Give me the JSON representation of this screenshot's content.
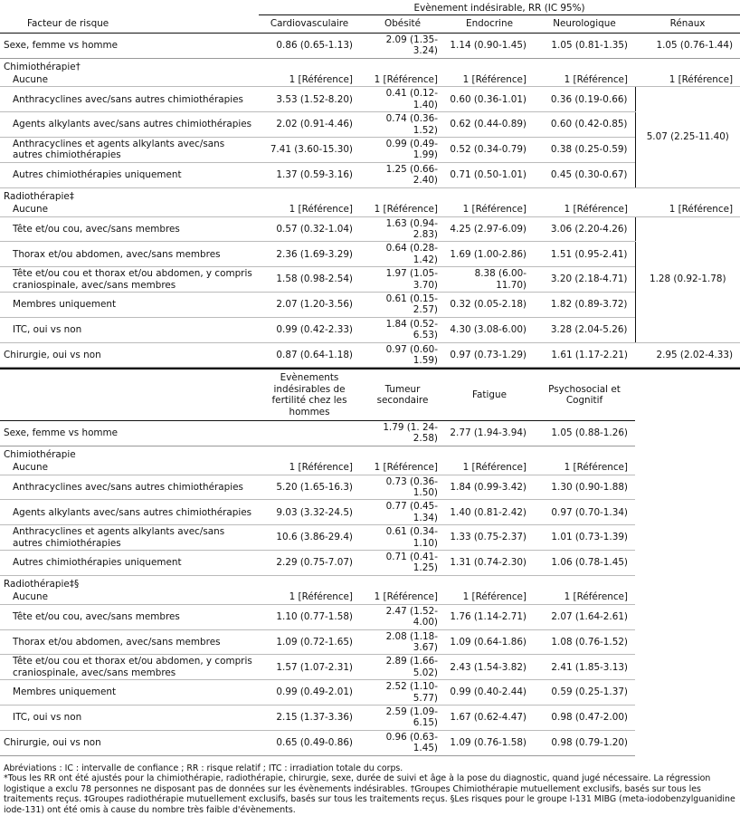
{
  "table1": {
    "group_header": "Evènement indésirable, RR (IC 95%)",
    "row_header": "Facteur de risque",
    "columns": [
      "Cardiovasculaire",
      "Obésité",
      "Endocrine",
      "Neurologique",
      "Rénaux"
    ],
    "sections": [
      {
        "label": "Sexe, femme vs homme",
        "values": [
          "0.86 (0.65-1.13)",
          "2.09 (1.35-3.24)",
          "1.14 (0.90-1.45)",
          "1.05 (0.81-1.35)",
          "1.05 (0.76-1.44)"
        ]
      },
      {
        "heading": "Chimiothérapie†",
        "reference": {
          "label": "Aucune",
          "values": [
            "1 [Référence]",
            "1 [Référence]",
            "1 [Référence]",
            "1 [Référence]",
            "1 [Référence]"
          ]
        },
        "items": [
          {
            "label": "Anthracyclines avec/sans autres chimiothérapies",
            "values": [
              "3.53 (1.52-8.20)",
              "0.41 (0.12-1.40)",
              "0.60 (0.36-1.01)",
              "0.36 (0.19-0.66)"
            ]
          },
          {
            "label": "Agents alkylants avec/sans autres chimiothérapies",
            "values": [
              "2.02 (0.91-4.46)",
              "0.74 (0.36-1.52)",
              "0.62 (0.44-0.89)",
              "0.60 (0.42-0.85)"
            ]
          },
          {
            "label": "Anthracyclines et agents alkylants avec/sans autres chimiothérapies",
            "values": [
              "7.41 (3.60-15.30)",
              "0.99 (0.49-1.99)",
              "0.52 (0.34-0.79)",
              "0.38 (0.25-0.59)"
            ]
          },
          {
            "label": "Autres chimiothérapies uniquement",
            "values": [
              "1.37 (0.59-3.16)",
              "1.25 (0.66-2.40)",
              "0.71 (0.50-1.01)",
              "0.45 (0.30-0.67)"
            ]
          }
        ],
        "shared": "5.07 (2.25-11.40)"
      },
      {
        "heading": "Radiothérapie‡",
        "reference": {
          "label": "Aucune",
          "values": [
            "1 [Référence]",
            "1 [Référence]",
            "1 [Référence]",
            "1 [Référence]",
            "1 [Référence]"
          ]
        },
        "items": [
          {
            "label": "Tête et/ou cou, avec/sans membres",
            "values": [
              "0.57 (0.32-1.04)",
              "1.63 (0.94-2.83)",
              "4.25 (2.97-6.09)",
              "3.06 (2.20-4.26)"
            ]
          },
          {
            "label": "Thorax et/ou abdomen, avec/sans membres",
            "values": [
              "2.36 (1.69-3.29)",
              "0.64 (0.28-1.42)",
              "1.69 (1.00-2.86)",
              "1.51 (0.95-2.41)"
            ]
          },
          {
            "label": "Tête et/ou cou et thorax et/ou abdomen, y compris craniospinale, avec/sans membres",
            "values": [
              "1.58 (0.98-2.54)",
              "1.97 (1.05-3.70)",
              "8.38 (6.00-11.70)",
              "3.20 (2.18-4.71)"
            ]
          },
          {
            "label": "Membres uniquement",
            "values": [
              "2.07 (1.20-3.56)",
              "0.61 (0.15-2.57)",
              "0.32 (0.05-2.18)",
              "1.82 (0.89-3.72)"
            ]
          },
          {
            "label": "ITC, oui vs non",
            "values": [
              "0.99 (0.42-2.33)",
              "1.84 (0.52-6.53)",
              "4.30 (3.08-6.00)",
              "3.28 (2.04-5.26)"
            ]
          }
        ],
        "shared": "1.28 (0.92-1.78)"
      },
      {
        "label": "Chirurgie, oui vs non",
        "values": [
          "0.87 (0.64-1.18)",
          "0.97 (0.60-1.59)",
          "0.97 (0.73-1.29)",
          "1.61 (1.17-2.21)",
          "2.95 (2.02-4.33)"
        ]
      }
    ]
  },
  "table2": {
    "columns": [
      "Evènements indésirables de fertilité chez les hommes",
      "Tumeur secondaire",
      "Fatigue",
      "Psychosocial et Cognitif"
    ],
    "sections": [
      {
        "label": "Sexe, femme vs homme",
        "values": [
          null,
          "1.79 (1. 24-2.58)",
          "2.77 (1.94-3.94)",
          "1.05 (0.88-1.26)"
        ]
      },
      {
        "heading": "Chimiothérapie",
        "reference": {
          "label": "Aucune",
          "values": [
            "1 [Référence]",
            "1 [Référence]",
            "1 [Référence]",
            "1 [Référence]"
          ]
        },
        "items": [
          {
            "label": "Anthracyclines avec/sans autres chimiothérapies",
            "values": [
              "5.20 (1.65-16.3)",
              "0.73 (0.36-1.50)",
              "1.84 (0.99-3.42)",
              "1.30 (0.90-1.88)"
            ]
          },
          {
            "label": "Agents alkylants avec/sans autres chimiothérapies",
            "values": [
              "9.03 (3.32-24.5)",
              "0.77 (0.45-1.34)",
              "1.40 (0.81-2.42)",
              "0.97 (0.70-1.34)"
            ]
          },
          {
            "label": "Anthracyclines et agents alkylants avec/sans autres chimiothérapies",
            "values": [
              "10.6 (3.86-29.4)",
              "0.61 (0.34-1.10)",
              "1.33 (0.75-2.37)",
              "1.01 (0.73-1.39)"
            ]
          },
          {
            "label": "Autres chimiothérapies uniquement",
            "values": [
              "2.29 (0.75-7.07)",
              "0.71 (0.41-1.25)",
              "1.31 (0.74-2.30)",
              "1.06 (0.78-1.45)"
            ]
          }
        ]
      },
      {
        "heading": "Radiothérapie‡§",
        "reference": {
          "label": "Aucune",
          "values": [
            "1 [Référence]",
            "1 [Référence]",
            "1 [Référence]",
            "1 [Référence]"
          ]
        },
        "items": [
          {
            "label": "Tête et/ou cou, avec/sans membres",
            "values": [
              "1.10 (0.77-1.58)",
              "2.47 (1.52-4.00)",
              "1.76 (1.14-2.71)",
              "2.07 (1.64-2.61)"
            ]
          },
          {
            "label": "Thorax et/ou abdomen, avec/sans membres",
            "values": [
              "1.09 (0.72-1.65)",
              "2.08 (1.18-3.67)",
              "1.09 (0.64-1.86)",
              "1.08 (0.76-1.52)"
            ]
          },
          {
            "label": "Tête et/ou cou et thorax et/ou abdomen, y compris craniospinale, avec/sans membres",
            "values": [
              "1.57 (1.07-2.31)",
              "2.89 (1.66-5.02)",
              "2.43 (1.54-3.82)",
              "2.41 (1.85-3.13)"
            ]
          },
          {
            "label": "Membres uniquement",
            "values": [
              "0.99 (0.49-2.01)",
              "2.52 (1.10-5.77)",
              "0.99 (0.40-2.44)",
              "0.59 (0.25-1.37)"
            ]
          },
          {
            "label": "ITC, oui vs non",
            "values": [
              "2.15 (1.37-3.36)",
              "2.59 (1.09-6.15)",
              "1.67 (0.62-4.47)",
              "0.98 (0.47-2.00)"
            ]
          }
        ]
      },
      {
        "label": "Chirurgie, oui vs non",
        "values": [
          "0.65 (0.49-0.86)",
          "0.96 (0.63-1.45)",
          "1.09 (0.76-1.58)",
          "0.98 (0.79-1.20)"
        ]
      }
    ]
  },
  "notes": [
    "Abréviations : IC : intervalle de confiance ; RR : risque relatif ; ITC : irradiation totale du corps.",
    "*Tous les RR ont été ajustés pour la chimiothérapie, radiothérapie, chirurgie, sexe, durée de suivi et âge à la pose du diagnostic, quand jugé nécessaire. La régression logistique a exclu 78 personnes ne disposant pas de données sur les évènements indésirables. †Groupes Chimiothérapie mutuellement exclusifs, basés sur tous les traitements reçus. ‡Groupes radiothérapie mutuellement exclusifs, basés sur tous les traitements reçus. §Les risques pour le groupe I-131 MIBG (meta-iodobenzylguanidine iode-131) ont été omis à cause du nombre très faible d'évènements."
  ]
}
